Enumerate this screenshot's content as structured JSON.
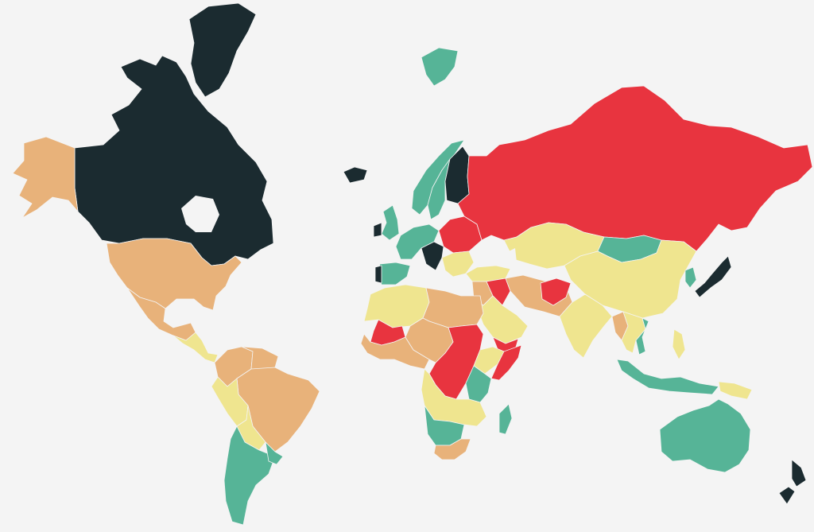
{
  "map": {
    "background": "#f4f4f4",
    "palette": {
      "dark": "#1b2b30",
      "green": "#56b497",
      "yellow": "#efe58f",
      "orange": "#e8b27a",
      "red": "#e8343f"
    },
    "regions": [
      {
        "name": "greenland",
        "level": "dark"
      },
      {
        "name": "canada",
        "level": "dark"
      },
      {
        "name": "alaska",
        "level": "orange"
      },
      {
        "name": "united-states",
        "level": "orange"
      },
      {
        "name": "mexico",
        "level": "orange"
      },
      {
        "name": "central-america",
        "level": "yellow"
      },
      {
        "name": "colombia",
        "level": "orange"
      },
      {
        "name": "venezuela",
        "level": "orange"
      },
      {
        "name": "brazil",
        "level": "orange"
      },
      {
        "name": "peru",
        "level": "yellow"
      },
      {
        "name": "bolivia",
        "level": "yellow"
      },
      {
        "name": "chile-argentina",
        "level": "green"
      },
      {
        "name": "uruguay",
        "level": "green"
      },
      {
        "name": "iceland",
        "level": "dark"
      },
      {
        "name": "svalbard",
        "level": "green"
      },
      {
        "name": "norway",
        "level": "green"
      },
      {
        "name": "sweden",
        "level": "green"
      },
      {
        "name": "finland",
        "level": "dark"
      },
      {
        "name": "united-kingdom",
        "level": "green"
      },
      {
        "name": "ireland",
        "level": "dark"
      },
      {
        "name": "iberia",
        "level": "green"
      },
      {
        "name": "portugal",
        "level": "dark"
      },
      {
        "name": "western-europe",
        "level": "green"
      },
      {
        "name": "central-europe",
        "level": "dark"
      },
      {
        "name": "eastern-europe",
        "level": "red"
      },
      {
        "name": "balkans",
        "level": "yellow"
      },
      {
        "name": "russia",
        "level": "red"
      },
      {
        "name": "kazakhstan-central-asia",
        "level": "yellow"
      },
      {
        "name": "mongolia",
        "level": "green"
      },
      {
        "name": "china",
        "level": "yellow"
      },
      {
        "name": "japan",
        "level": "dark"
      },
      {
        "name": "korea",
        "level": "green"
      },
      {
        "name": "turkey",
        "level": "yellow"
      },
      {
        "name": "middle-east",
        "level": "orange"
      },
      {
        "name": "iraq",
        "level": "red"
      },
      {
        "name": "iran-pakistan",
        "level": "orange"
      },
      {
        "name": "afghanistan",
        "level": "red"
      },
      {
        "name": "arabia",
        "level": "yellow"
      },
      {
        "name": "yemen",
        "level": "red"
      },
      {
        "name": "india",
        "level": "yellow"
      },
      {
        "name": "southeast-asia",
        "level": "yellow"
      },
      {
        "name": "myanmar",
        "level": "orange"
      },
      {
        "name": "vietnam",
        "level": "green"
      },
      {
        "name": "indonesia",
        "level": "green"
      },
      {
        "name": "philippines",
        "level": "yellow"
      },
      {
        "name": "papua",
        "level": "yellow"
      },
      {
        "name": "australia",
        "level": "green"
      },
      {
        "name": "new-zealand",
        "level": "dark"
      },
      {
        "name": "north-africa",
        "level": "yellow"
      },
      {
        "name": "libya-egypt",
        "level": "orange"
      },
      {
        "name": "mali",
        "level": "red"
      },
      {
        "name": "west-africa",
        "level": "orange"
      },
      {
        "name": "sudan-car",
        "level": "red"
      },
      {
        "name": "somalia",
        "level": "red"
      },
      {
        "name": "ethiopia",
        "level": "yellow"
      },
      {
        "name": "central-africa",
        "level": "orange"
      },
      {
        "name": "east-africa",
        "level": "green"
      },
      {
        "name": "southern-africa",
        "level": "yellow"
      },
      {
        "name": "angola-zambia",
        "level": "green"
      },
      {
        "name": "south-africa",
        "level": "orange"
      },
      {
        "name": "madagascar",
        "level": "green"
      }
    ]
  }
}
